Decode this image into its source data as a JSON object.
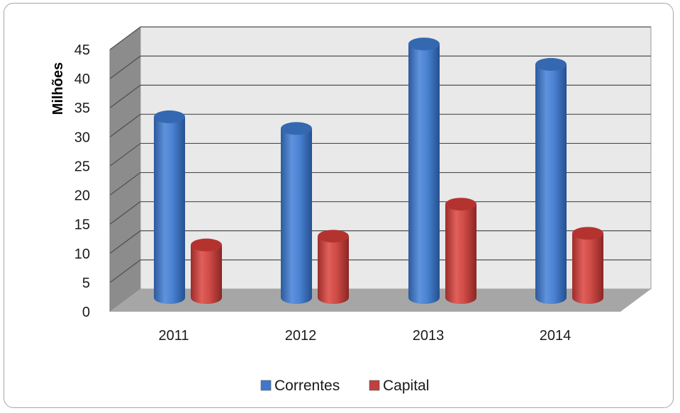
{
  "chart_data": {
    "type": "bar",
    "categories": [
      "2011",
      "2012",
      "2013",
      "2014"
    ],
    "series": [
      {
        "name": "Correntes",
        "values": [
          32,
          30,
          44.5,
          41
        ],
        "color": "#3f78c9"
      },
      {
        "name": "Capital",
        "values": [
          10,
          11.5,
          17,
          12
        ],
        "color": "#c0403d"
      }
    ],
    "y_ticks": [
      "0",
      "5",
      "10",
      "15",
      "20",
      "25",
      "30",
      "35",
      "40",
      "45"
    ],
    "ylim": [
      0,
      45
    ],
    "ylabel": "Milhões",
    "xlabel": "",
    "grid": true,
    "legend_position": "bottom",
    "style": "3d-cylinder"
  }
}
